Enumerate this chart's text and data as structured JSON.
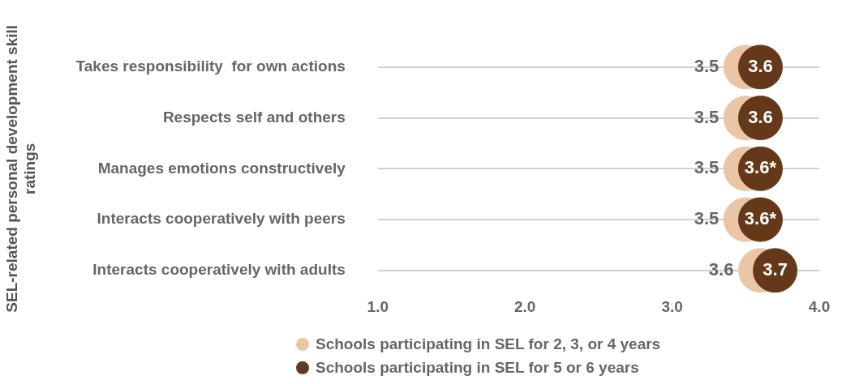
{
  "chart_data": {
    "type": "scatter",
    "orientation": "horizontal",
    "ylabel": "SEL-related personal development skill ratings",
    "categories": [
      "Takes responsibility  for own actions",
      "Respects self and others",
      "Manages emotions constructively",
      "Interacts cooperatively with peers",
      "Interacts cooperatively with adults"
    ],
    "series": [
      {
        "name": "Schools participating in SEL for 2, 3, or 4 years",
        "color": "#ebc6a6",
        "values": [
          3.5,
          3.5,
          3.5,
          3.5,
          3.6
        ],
        "value_labels": [
          "3.5",
          "3.5",
          "3.5",
          "3.5",
          "3.6"
        ]
      },
      {
        "name": "Schools participating in SEL for 5 or 6 years",
        "color": "#653819",
        "values": [
          3.6,
          3.6,
          3.6,
          3.6,
          3.7
        ],
        "value_labels": [
          "3.6",
          "3.6",
          "3.6*",
          "3.6*",
          "3.7"
        ]
      }
    ],
    "xlim": [
      1,
      4
    ],
    "xticks": [
      {
        "value": 1,
        "label": "1.0"
      },
      {
        "value": 2,
        "label": "2.0"
      },
      {
        "value": 3,
        "label": "3.0"
      },
      {
        "value": 4,
        "label": "4.0"
      }
    ],
    "grid": "y",
    "legend": "bottom",
    "marker": "circle"
  }
}
